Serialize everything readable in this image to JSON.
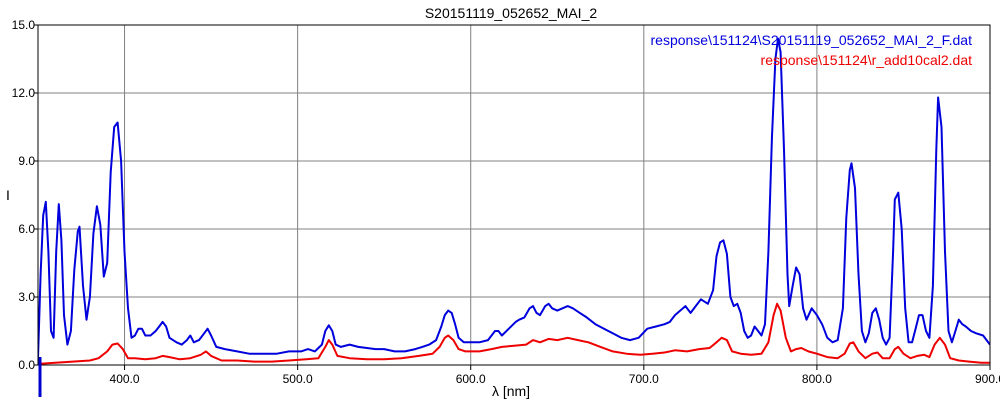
{
  "chart_data": {
    "type": "line",
    "title": "S20151119_052652_MAI_2",
    "xlabel": "λ [nm]",
    "ylabel": "I",
    "xlim": [
      350,
      900
    ],
    "ylim": [
      0,
      15
    ],
    "x_ticks": [
      400,
      500,
      600,
      700,
      800,
      900
    ],
    "x_tick_labels": [
      "400.0",
      "500.0",
      "600.0",
      "700.0",
      "800.0",
      "900.0"
    ],
    "y_ticks": [
      0,
      3,
      6,
      9,
      12,
      15
    ],
    "y_tick_labels": [
      "0.0",
      "3.0",
      "6.0",
      "9.0",
      "12.0",
      "15.0"
    ],
    "grid": true,
    "legend_position": "top-right",
    "series": [
      {
        "name": "response\\151124\\S20151119_052652_MAI_2_F.dat",
        "color": "#0000dd",
        "points": [
          [
            350,
            0.3
          ],
          [
            351.5,
            4.0
          ],
          [
            353,
            6.6
          ],
          [
            354.5,
            7.2
          ],
          [
            356,
            5.0
          ],
          [
            357.5,
            1.5
          ],
          [
            359,
            1.2
          ],
          [
            360.5,
            5.0
          ],
          [
            362,
            7.1
          ],
          [
            363.5,
            5.5
          ],
          [
            365,
            2.2
          ],
          [
            367,
            0.9
          ],
          [
            369,
            1.5
          ],
          [
            371,
            4.2
          ],
          [
            373,
            5.9
          ],
          [
            374,
            6.1
          ],
          [
            376,
            3.5
          ],
          [
            378,
            2.0
          ],
          [
            380,
            3.0
          ],
          [
            382,
            5.8
          ],
          [
            384,
            7.0
          ],
          [
            386,
            6.2
          ],
          [
            388,
            3.9
          ],
          [
            390,
            4.5
          ],
          [
            392,
            8.5
          ],
          [
            394,
            10.5
          ],
          [
            396,
            10.7
          ],
          [
            398,
            9.0
          ],
          [
            400,
            5.0
          ],
          [
            402,
            2.5
          ],
          [
            404,
            1.2
          ],
          [
            406,
            1.3
          ],
          [
            408,
            1.6
          ],
          [
            410,
            1.6
          ],
          [
            412,
            1.3
          ],
          [
            415,
            1.3
          ],
          [
            418,
            1.5
          ],
          [
            420,
            1.7
          ],
          [
            422,
            1.9
          ],
          [
            424,
            1.7
          ],
          [
            426,
            1.2
          ],
          [
            430,
            1.0
          ],
          [
            433,
            0.9
          ],
          [
            436,
            1.1
          ],
          [
            438,
            1.3
          ],
          [
            440,
            1.0
          ],
          [
            443,
            1.1
          ],
          [
            446,
            1.4
          ],
          [
            448,
            1.6
          ],
          [
            450,
            1.3
          ],
          [
            453,
            0.8
          ],
          [
            458,
            0.7
          ],
          [
            465,
            0.6
          ],
          [
            472,
            0.5
          ],
          [
            480,
            0.5
          ],
          [
            488,
            0.5
          ],
          [
            495,
            0.6
          ],
          [
            502,
            0.6
          ],
          [
            506,
            0.7
          ],
          [
            510,
            0.6
          ],
          [
            514,
            0.9
          ],
          [
            516,
            1.5
          ],
          [
            518,
            1.75
          ],
          [
            520,
            1.5
          ],
          [
            522,
            0.9
          ],
          [
            525,
            0.8
          ],
          [
            530,
            0.9
          ],
          [
            535,
            0.8
          ],
          [
            540,
            0.75
          ],
          [
            545,
            0.7
          ],
          [
            550,
            0.7
          ],
          [
            556,
            0.6
          ],
          [
            562,
            0.6
          ],
          [
            568,
            0.7
          ],
          [
            572,
            0.8
          ],
          [
            576,
            0.9
          ],
          [
            580,
            1.1
          ],
          [
            583,
            1.7
          ],
          [
            585,
            2.2
          ],
          [
            587,
            2.4
          ],
          [
            589,
            2.3
          ],
          [
            591,
            1.8
          ],
          [
            593,
            1.2
          ],
          [
            596,
            1.0
          ],
          [
            600,
            1.0
          ],
          [
            605,
            1.0
          ],
          [
            610,
            1.1
          ],
          [
            614,
            1.5
          ],
          [
            616,
            1.5
          ],
          [
            618,
            1.3
          ],
          [
            622,
            1.6
          ],
          [
            626,
            1.9
          ],
          [
            628,
            2.0
          ],
          [
            631,
            2.1
          ],
          [
            634,
            2.5
          ],
          [
            636,
            2.6
          ],
          [
            638,
            2.3
          ],
          [
            640,
            2.2
          ],
          [
            643,
            2.6
          ],
          [
            645,
            2.7
          ],
          [
            647,
            2.5
          ],
          [
            650,
            2.4
          ],
          [
            653,
            2.5
          ],
          [
            656,
            2.6
          ],
          [
            659,
            2.5
          ],
          [
            663,
            2.3
          ],
          [
            667,
            2.1
          ],
          [
            672,
            1.8
          ],
          [
            677,
            1.6
          ],
          [
            682,
            1.4
          ],
          [
            687,
            1.2
          ],
          [
            692,
            1.1
          ],
          [
            697,
            1.2
          ],
          [
            702,
            1.6
          ],
          [
            707,
            1.7
          ],
          [
            712,
            1.8
          ],
          [
            715,
            1.9
          ],
          [
            718,
            2.2
          ],
          [
            721,
            2.4
          ],
          [
            724,
            2.6
          ],
          [
            727,
            2.3
          ],
          [
            730,
            2.6
          ],
          [
            733,
            2.9
          ],
          [
            737,
            2.7
          ],
          [
            740,
            3.3
          ],
          [
            742,
            4.8
          ],
          [
            744,
            5.4
          ],
          [
            746,
            5.5
          ],
          [
            748,
            4.9
          ],
          [
            750,
            3.0
          ],
          [
            752,
            2.6
          ],
          [
            754,
            2.7
          ],
          [
            756,
            2.3
          ],
          [
            758,
            1.5
          ],
          [
            760,
            1.2
          ],
          [
            762,
            1.3
          ],
          [
            764,
            1.7
          ],
          [
            766,
            1.5
          ],
          [
            768,
            1.3
          ],
          [
            770,
            1.8
          ],
          [
            772,
            5.0
          ],
          [
            774,
            10.0
          ],
          [
            776,
            13.5
          ],
          [
            777.5,
            14.4
          ],
          [
            779,
            13.8
          ],
          [
            781,
            9.5
          ],
          [
            783,
            4.0
          ],
          [
            784,
            2.6
          ],
          [
            786,
            3.5
          ],
          [
            788,
            4.3
          ],
          [
            790,
            4.0
          ],
          [
            792,
            2.5
          ],
          [
            794,
            2.0
          ],
          [
            797,
            2.5
          ],
          [
            800,
            2.2
          ],
          [
            803,
            1.8
          ],
          [
            806,
            1.2
          ],
          [
            809,
            1.0
          ],
          [
            812,
            1.1
          ],
          [
            815,
            2.5
          ],
          [
            817,
            6.5
          ],
          [
            819,
            8.6
          ],
          [
            820,
            8.9
          ],
          [
            822,
            7.8
          ],
          [
            824,
            4.0
          ],
          [
            826,
            1.5
          ],
          [
            828,
            1.0
          ],
          [
            830,
            1.4
          ],
          [
            832,
            2.3
          ],
          [
            834,
            2.5
          ],
          [
            836,
            2.0
          ],
          [
            838,
            1.2
          ],
          [
            840,
            0.9
          ],
          [
            842,
            1.2
          ],
          [
            844,
            5.0
          ],
          [
            845,
            7.3
          ],
          [
            847,
            7.6
          ],
          [
            849,
            6.0
          ],
          [
            851,
            2.5
          ],
          [
            853,
            1.0
          ],
          [
            855,
            1.0
          ],
          [
            857,
            1.6
          ],
          [
            859,
            2.2
          ],
          [
            861,
            2.2
          ],
          [
            863,
            1.5
          ],
          [
            865,
            1.2
          ],
          [
            867,
            3.5
          ],
          [
            869,
            9.5
          ],
          [
            870,
            11.8
          ],
          [
            872,
            10.5
          ],
          [
            874,
            5.0
          ],
          [
            876,
            1.5
          ],
          [
            878,
            1.0
          ],
          [
            880,
            1.5
          ],
          [
            882,
            2.0
          ],
          [
            884,
            1.8
          ],
          [
            886,
            1.7
          ],
          [
            889,
            1.5
          ],
          [
            892,
            1.4
          ],
          [
            896,
            1.3
          ],
          [
            900,
            0.9
          ]
        ]
      },
      {
        "name": "response\\151124\\r_add10cal2.dat",
        "color": "#ee0000",
        "points": [
          [
            350,
            0.05
          ],
          [
            360,
            0.1
          ],
          [
            370,
            0.15
          ],
          [
            380,
            0.2
          ],
          [
            385,
            0.3
          ],
          [
            390,
            0.6
          ],
          [
            393,
            0.9
          ],
          [
            396,
            0.95
          ],
          [
            399,
            0.7
          ],
          [
            402,
            0.3
          ],
          [
            406,
            0.3
          ],
          [
            412,
            0.25
          ],
          [
            418,
            0.3
          ],
          [
            422,
            0.4
          ],
          [
            426,
            0.35
          ],
          [
            432,
            0.25
          ],
          [
            438,
            0.3
          ],
          [
            444,
            0.45
          ],
          [
            447,
            0.6
          ],
          [
            450,
            0.4
          ],
          [
            456,
            0.2
          ],
          [
            465,
            0.2
          ],
          [
            475,
            0.15
          ],
          [
            485,
            0.15
          ],
          [
            495,
            0.2
          ],
          [
            505,
            0.25
          ],
          [
            512,
            0.3
          ],
          [
            516,
            0.8
          ],
          [
            518,
            1.1
          ],
          [
            520,
            0.9
          ],
          [
            523,
            0.4
          ],
          [
            530,
            0.3
          ],
          [
            540,
            0.25
          ],
          [
            550,
            0.25
          ],
          [
            560,
            0.3
          ],
          [
            570,
            0.4
          ],
          [
            578,
            0.5
          ],
          [
            582,
            0.8
          ],
          [
            585,
            1.2
          ],
          [
            587,
            1.3
          ],
          [
            590,
            1.1
          ],
          [
            593,
            0.7
          ],
          [
            597,
            0.6
          ],
          [
            605,
            0.6
          ],
          [
            612,
            0.7
          ],
          [
            618,
            0.8
          ],
          [
            625,
            0.85
          ],
          [
            632,
            0.9
          ],
          [
            636,
            1.1
          ],
          [
            640,
            1.0
          ],
          [
            645,
            1.15
          ],
          [
            650,
            1.1
          ],
          [
            656,
            1.2
          ],
          [
            662,
            1.1
          ],
          [
            668,
            1.0
          ],
          [
            675,
            0.8
          ],
          [
            682,
            0.6
          ],
          [
            690,
            0.5
          ],
          [
            698,
            0.45
          ],
          [
            705,
            0.5
          ],
          [
            712,
            0.55
          ],
          [
            718,
            0.65
          ],
          [
            725,
            0.6
          ],
          [
            732,
            0.7
          ],
          [
            738,
            0.75
          ],
          [
            742,
            1.0
          ],
          [
            745,
            1.2
          ],
          [
            748,
            1.1
          ],
          [
            751,
            0.6
          ],
          [
            756,
            0.5
          ],
          [
            762,
            0.45
          ],
          [
            768,
            0.5
          ],
          [
            772,
            1.0
          ],
          [
            775,
            2.2
          ],
          [
            777,
            2.7
          ],
          [
            779,
            2.4
          ],
          [
            782,
            1.2
          ],
          [
            785,
            0.6
          ],
          [
            788,
            0.7
          ],
          [
            791,
            0.75
          ],
          [
            795,
            0.6
          ],
          [
            800,
            0.5
          ],
          [
            806,
            0.35
          ],
          [
            812,
            0.3
          ],
          [
            816,
            0.5
          ],
          [
            819,
            0.95
          ],
          [
            821,
            1.0
          ],
          [
            824,
            0.6
          ],
          [
            828,
            0.3
          ],
          [
            832,
            0.5
          ],
          [
            835,
            0.55
          ],
          [
            838,
            0.3
          ],
          [
            842,
            0.3
          ],
          [
            845,
            0.7
          ],
          [
            847,
            0.8
          ],
          [
            850,
            0.5
          ],
          [
            854,
            0.3
          ],
          [
            858,
            0.4
          ],
          [
            862,
            0.45
          ],
          [
            865,
            0.35
          ],
          [
            868,
            0.9
          ],
          [
            871,
            1.2
          ],
          [
            874,
            0.9
          ],
          [
            877,
            0.3
          ],
          [
            882,
            0.2
          ],
          [
            888,
            0.15
          ],
          [
            895,
            0.1
          ],
          [
            900,
            0.1
          ]
        ]
      }
    ]
  }
}
